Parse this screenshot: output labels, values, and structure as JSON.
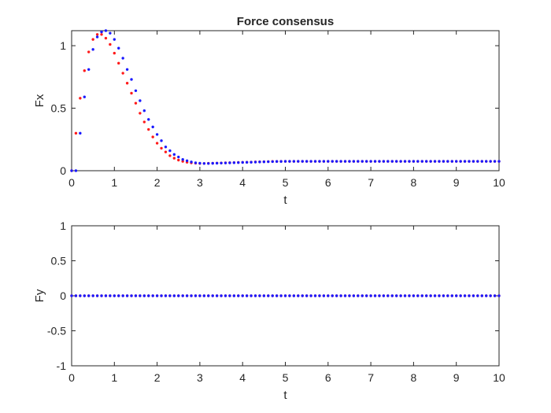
{
  "colors": {
    "background": "#ffffff",
    "axes": "#262626",
    "series_red": "#ff1a1a",
    "series_blue": "#1a1aff"
  },
  "chart_data": [
    {
      "type": "scatter",
      "title": "Force consensus",
      "xlabel": "t",
      "ylabel": "Fx",
      "xlim": [
        0,
        10
      ],
      "ylim": [
        0,
        1.12
      ],
      "xticks": [
        0,
        1,
        2,
        3,
        4,
        5,
        6,
        7,
        8,
        9,
        10
      ],
      "yticks": [
        0,
        0.5,
        1
      ],
      "ytick_labels": [
        "0",
        "0.5",
        "1"
      ],
      "grid": false,
      "series": [
        {
          "color": "#ff1a1a",
          "x": [
            0,
            0.1,
            0.2,
            0.3,
            0.4,
            0.5,
            0.6,
            0.7,
            0.8,
            0.9,
            1.0,
            1.1,
            1.2,
            1.3,
            1.4,
            1.5,
            1.6,
            1.7,
            1.8,
            1.9,
            2.0,
            2.1,
            2.2,
            2.3,
            2.4,
            2.5,
            2.6,
            2.7,
            2.8,
            2.9,
            3.0,
            3.1,
            3.2,
            3.3,
            3.4,
            3.5,
            3.6,
            3.7,
            3.8,
            3.9,
            4.0,
            4.1,
            4.2,
            4.3,
            4.4,
            4.5,
            4.6,
            4.7,
            4.8,
            4.9,
            5.0,
            5.1,
            5.2,
            5.3,
            5.4,
            5.5,
            5.6,
            5.7,
            5.8,
            5.9,
            6.0,
            6.1,
            6.2,
            6.3,
            6.4,
            6.5,
            6.6,
            6.7,
            6.8,
            6.9,
            7.0,
            7.1,
            7.2,
            7.3,
            7.4,
            7.5,
            7.6,
            7.7,
            7.8,
            7.9,
            8.0,
            8.1,
            8.2,
            8.3,
            8.4,
            8.5,
            8.6,
            8.7,
            8.8,
            8.9,
            9.0,
            9.1,
            9.2,
            9.3,
            9.4,
            9.5,
            9.6,
            9.7,
            9.8,
            9.9,
            10.0
          ],
          "y": [
            0,
            0.3,
            0.58,
            0.8,
            0.95,
            1.05,
            1.09,
            1.09,
            1.06,
            1.01,
            0.94,
            0.86,
            0.78,
            0.7,
            0.62,
            0.54,
            0.46,
            0.39,
            0.33,
            0.27,
            0.22,
            0.18,
            0.15,
            0.12,
            0.1,
            0.085,
            0.075,
            0.068,
            0.063,
            0.06,
            0.058,
            0.058,
            0.059,
            0.06,
            0.061,
            0.062,
            0.063,
            0.064,
            0.065,
            0.066,
            0.067,
            0.068,
            0.069,
            0.07,
            0.071,
            0.072,
            0.073,
            0.074,
            0.074,
            0.075,
            0.075,
            0.075,
            0.075,
            0.075,
            0.075,
            0.075,
            0.075,
            0.075,
            0.075,
            0.075,
            0.075,
            0.075,
            0.075,
            0.075,
            0.075,
            0.075,
            0.075,
            0.075,
            0.075,
            0.075,
            0.075,
            0.075,
            0.075,
            0.075,
            0.075,
            0.075,
            0.075,
            0.075,
            0.075,
            0.075,
            0.075,
            0.075,
            0.075,
            0.075,
            0.075,
            0.075,
            0.075,
            0.075,
            0.075,
            0.075,
            0.075,
            0.075,
            0.075,
            0.075,
            0.075,
            0.075,
            0.075,
            0.075,
            0.075,
            0.075,
            0.075
          ]
        },
        {
          "color": "#1a1aff",
          "x": [
            0,
            0.1,
            0.2,
            0.3,
            0.4,
            0.5,
            0.6,
            0.7,
            0.8,
            0.9,
            1.0,
            1.1,
            1.2,
            1.3,
            1.4,
            1.5,
            1.6,
            1.7,
            1.8,
            1.9,
            2.0,
            2.1,
            2.2,
            2.3,
            2.4,
            2.5,
            2.6,
            2.7,
            2.8,
            2.9,
            3.0,
            3.1,
            3.2,
            3.3,
            3.4,
            3.5,
            3.6,
            3.7,
            3.8,
            3.9,
            4.0,
            4.1,
            4.2,
            4.3,
            4.4,
            4.5,
            4.6,
            4.7,
            4.8,
            4.9,
            5.0,
            5.1,
            5.2,
            5.3,
            5.4,
            5.5,
            5.6,
            5.7,
            5.8,
            5.9,
            6.0,
            6.1,
            6.2,
            6.3,
            6.4,
            6.5,
            6.6,
            6.7,
            6.8,
            6.9,
            7.0,
            7.1,
            7.2,
            7.3,
            7.4,
            7.5,
            7.6,
            7.7,
            7.8,
            7.9,
            8.0,
            8.1,
            8.2,
            8.3,
            8.4,
            8.5,
            8.6,
            8.7,
            8.8,
            8.9,
            9.0,
            9.1,
            9.2,
            9.3,
            9.4,
            9.5,
            9.6,
            9.7,
            9.8,
            9.9,
            10.0
          ],
          "y": [
            0,
            0,
            0.3,
            0.59,
            0.81,
            0.97,
            1.07,
            1.11,
            1.12,
            1.1,
            1.05,
            0.98,
            0.9,
            0.81,
            0.73,
            0.64,
            0.56,
            0.48,
            0.41,
            0.35,
            0.29,
            0.24,
            0.19,
            0.16,
            0.13,
            0.11,
            0.09,
            0.08,
            0.07,
            0.063,
            0.06,
            0.058,
            0.058,
            0.059,
            0.06,
            0.061,
            0.062,
            0.063,
            0.064,
            0.065,
            0.066,
            0.067,
            0.068,
            0.069,
            0.07,
            0.071,
            0.072,
            0.073,
            0.074,
            0.074,
            0.075,
            0.075,
            0.075,
            0.075,
            0.075,
            0.075,
            0.075,
            0.075,
            0.075,
            0.075,
            0.075,
            0.075,
            0.075,
            0.075,
            0.075,
            0.075,
            0.075,
            0.075,
            0.075,
            0.075,
            0.075,
            0.075,
            0.075,
            0.075,
            0.075,
            0.075,
            0.075,
            0.075,
            0.075,
            0.075,
            0.075,
            0.075,
            0.075,
            0.075,
            0.075,
            0.075,
            0.075,
            0.075,
            0.075,
            0.075,
            0.075,
            0.075,
            0.075,
            0.075,
            0.075,
            0.075,
            0.075,
            0.075,
            0.075,
            0.075,
            0.075
          ]
        }
      ]
    },
    {
      "type": "scatter",
      "title": "",
      "xlabel": "t",
      "ylabel": "Fy",
      "xlim": [
        0,
        10
      ],
      "ylim": [
        -1,
        1
      ],
      "xticks": [
        0,
        1,
        2,
        3,
        4,
        5,
        6,
        7,
        8,
        9,
        10
      ],
      "yticks": [
        -1,
        -0.5,
        0,
        0.5,
        1
      ],
      "ytick_labels": [
        "-1",
        "-0.5",
        "0",
        "0.5",
        "1"
      ],
      "grid": false,
      "series": [
        {
          "color": "#ff1a1a",
          "x": [
            0,
            0.1,
            0.2,
            0.3,
            0.4,
            0.5,
            0.6,
            0.7,
            0.8,
            0.9,
            1.0,
            1.1,
            1.2,
            1.3,
            1.4,
            1.5,
            1.6,
            1.7,
            1.8,
            1.9,
            2.0,
            2.1,
            2.2,
            2.3,
            2.4,
            2.5,
            2.6,
            2.7,
            2.8,
            2.9,
            3.0,
            3.1,
            3.2,
            3.3,
            3.4,
            3.5,
            3.6,
            3.7,
            3.8,
            3.9,
            4.0,
            4.1,
            4.2,
            4.3,
            4.4,
            4.5,
            4.6,
            4.7,
            4.8,
            4.9,
            5.0,
            5.1,
            5.2,
            5.3,
            5.4,
            5.5,
            5.6,
            5.7,
            5.8,
            5.9,
            6.0,
            6.1,
            6.2,
            6.3,
            6.4,
            6.5,
            6.6,
            6.7,
            6.8,
            6.9,
            7.0,
            7.1,
            7.2,
            7.3,
            7.4,
            7.5,
            7.6,
            7.7,
            7.8,
            7.9,
            8.0,
            8.1,
            8.2,
            8.3,
            8.4,
            8.5,
            8.6,
            8.7,
            8.8,
            8.9,
            9.0,
            9.1,
            9.2,
            9.3,
            9.4,
            9.5,
            9.6,
            9.7,
            9.8,
            9.9,
            10.0
          ],
          "y": [
            0,
            0,
            0,
            0,
            0,
            0,
            0,
            0,
            0,
            0,
            0,
            0,
            0,
            0,
            0,
            0,
            0,
            0,
            0,
            0,
            0,
            0,
            0,
            0,
            0,
            0,
            0,
            0,
            0,
            0,
            0,
            0,
            0,
            0,
            0,
            0,
            0,
            0,
            0,
            0,
            0,
            0,
            0,
            0,
            0,
            0,
            0,
            0,
            0,
            0,
            0,
            0,
            0,
            0,
            0,
            0,
            0,
            0,
            0,
            0,
            0,
            0,
            0,
            0,
            0,
            0,
            0,
            0,
            0,
            0,
            0,
            0,
            0,
            0,
            0,
            0,
            0,
            0,
            0,
            0,
            0,
            0,
            0,
            0,
            0,
            0,
            0,
            0,
            0,
            0,
            0,
            0,
            0,
            0,
            0,
            0,
            0,
            0,
            0,
            0,
            0
          ]
        },
        {
          "color": "#1a1aff",
          "x": [
            0,
            0.1,
            0.2,
            0.3,
            0.4,
            0.5,
            0.6,
            0.7,
            0.8,
            0.9,
            1.0,
            1.1,
            1.2,
            1.3,
            1.4,
            1.5,
            1.6,
            1.7,
            1.8,
            1.9,
            2.0,
            2.1,
            2.2,
            2.3,
            2.4,
            2.5,
            2.6,
            2.7,
            2.8,
            2.9,
            3.0,
            3.1,
            3.2,
            3.3,
            3.4,
            3.5,
            3.6,
            3.7,
            3.8,
            3.9,
            4.0,
            4.1,
            4.2,
            4.3,
            4.4,
            4.5,
            4.6,
            4.7,
            4.8,
            4.9,
            5.0,
            5.1,
            5.2,
            5.3,
            5.4,
            5.5,
            5.6,
            5.7,
            5.8,
            5.9,
            6.0,
            6.1,
            6.2,
            6.3,
            6.4,
            6.5,
            6.6,
            6.7,
            6.8,
            6.9,
            7.0,
            7.1,
            7.2,
            7.3,
            7.4,
            7.5,
            7.6,
            7.7,
            7.8,
            7.9,
            8.0,
            8.1,
            8.2,
            8.3,
            8.4,
            8.5,
            8.6,
            8.7,
            8.8,
            8.9,
            9.0,
            9.1,
            9.2,
            9.3,
            9.4,
            9.5,
            9.6,
            9.7,
            9.8,
            9.9,
            10.0
          ],
          "y": [
            0,
            0,
            0,
            0,
            0,
            0,
            0,
            0,
            0,
            0,
            0,
            0,
            0,
            0,
            0,
            0,
            0,
            0,
            0,
            0,
            0,
            0,
            0,
            0,
            0,
            0,
            0,
            0,
            0,
            0,
            0,
            0,
            0,
            0,
            0,
            0,
            0,
            0,
            0,
            0,
            0,
            0,
            0,
            0,
            0,
            0,
            0,
            0,
            0,
            0,
            0,
            0,
            0,
            0,
            0,
            0,
            0,
            0,
            0,
            0,
            0,
            0,
            0,
            0,
            0,
            0,
            0,
            0,
            0,
            0,
            0,
            0,
            0,
            0,
            0,
            0,
            0,
            0,
            0,
            0,
            0,
            0,
            0,
            0,
            0,
            0,
            0,
            0,
            0,
            0,
            0,
            0,
            0,
            0,
            0,
            0,
            0,
            0,
            0,
            0,
            0
          ]
        }
      ]
    }
  ]
}
